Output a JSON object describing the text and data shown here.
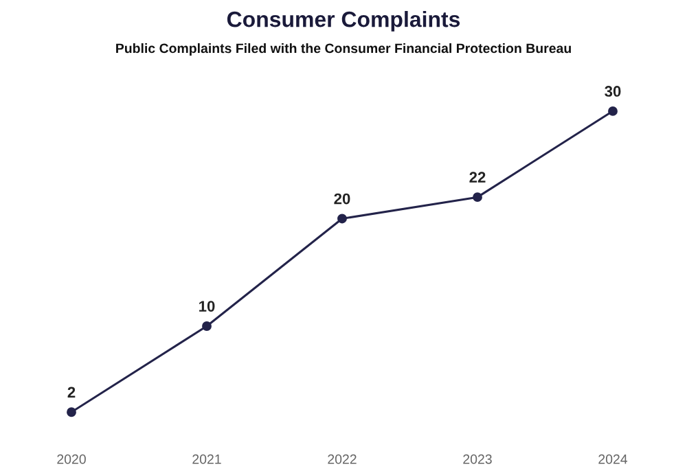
{
  "chart_data": {
    "type": "line",
    "title": "Consumer Complaints",
    "subtitle": "Public Complaints Filed with the Consumer Financial Protection Bureau",
    "categories": [
      "2020",
      "2021",
      "2022",
      "2023",
      "2024"
    ],
    "series": [
      {
        "color": "#23234a",
        "values": [
          2,
          10,
          20,
          22,
          30
        ]
      }
    ],
    "data_labels": true,
    "marker": "circle",
    "line_style": "solid",
    "grid": false,
    "legend": false,
    "tick_labels": "x"
  }
}
